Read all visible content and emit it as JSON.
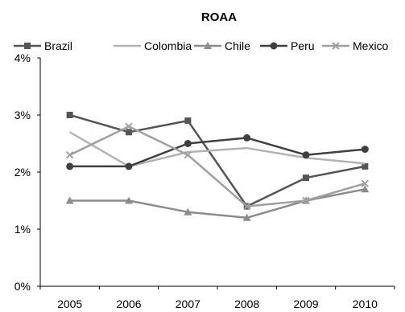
{
  "chart_data": {
    "type": "line",
    "title": "ROAA",
    "xlabel": "",
    "ylabel": "",
    "categories": [
      "2005",
      "2006",
      "2007",
      "2008",
      "2009",
      "2010"
    ],
    "ylim": [
      0,
      4
    ],
    "yticks": [
      0,
      1,
      2,
      3,
      4
    ],
    "ytick_labels": [
      "0%",
      "1%",
      "2%",
      "3%",
      "4%"
    ],
    "grid": false,
    "legend": "top",
    "series": [
      {
        "name": "Brazil",
        "values": [
          3.0,
          2.7,
          2.9,
          1.4,
          1.9,
          2.1
        ],
        "color": "#555555",
        "marker": "square"
      },
      {
        "name": "Colombia",
        "values": [
          2.7,
          2.1,
          2.35,
          2.42,
          2.25,
          2.15
        ],
        "color": "#b3b3b3",
        "marker": "none"
      },
      {
        "name": "Chile",
        "values": [
          1.5,
          1.5,
          1.3,
          1.2,
          1.5,
          1.7
        ],
        "color": "#8c8c8c",
        "marker": "triangle"
      },
      {
        "name": "Peru",
        "values": [
          2.1,
          2.1,
          2.5,
          2.6,
          2.3,
          2.4
        ],
        "color": "#404040",
        "marker": "circle"
      },
      {
        "name": "Mexico",
        "values": [
          2.3,
          2.8,
          2.3,
          1.4,
          1.5,
          1.8
        ],
        "color": "#a0a0a0",
        "marker": "x"
      }
    ]
  }
}
